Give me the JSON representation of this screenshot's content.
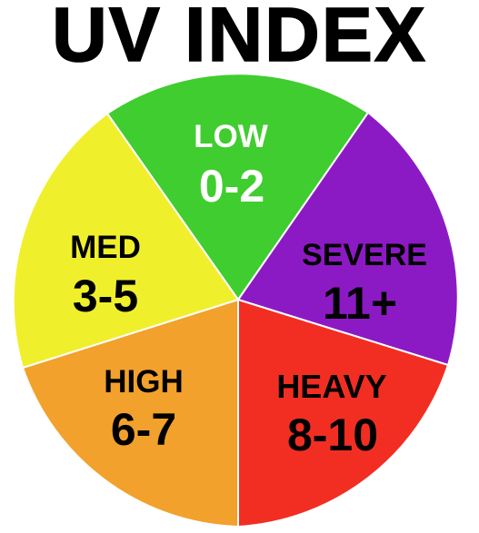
{
  "title": "UV INDEX",
  "segments": [
    {
      "name": "LOW",
      "range": "0-2",
      "color": "#40cd2f",
      "text_color": "#ffffff"
    },
    {
      "name": "SEVERE",
      "range": "11+",
      "color": "#8c1ac4",
      "text_color": "#000000"
    },
    {
      "name": "HEAVY",
      "range": "8-10",
      "color": "#f22e23",
      "text_color": "#000000"
    },
    {
      "name": "HIGH",
      "range": "6-7",
      "color": "#f2a12c",
      "text_color": "#000000"
    },
    {
      "name": "MED",
      "range": "3-5",
      "color": "#f0ef2c",
      "text_color": "#000000"
    }
  ]
}
